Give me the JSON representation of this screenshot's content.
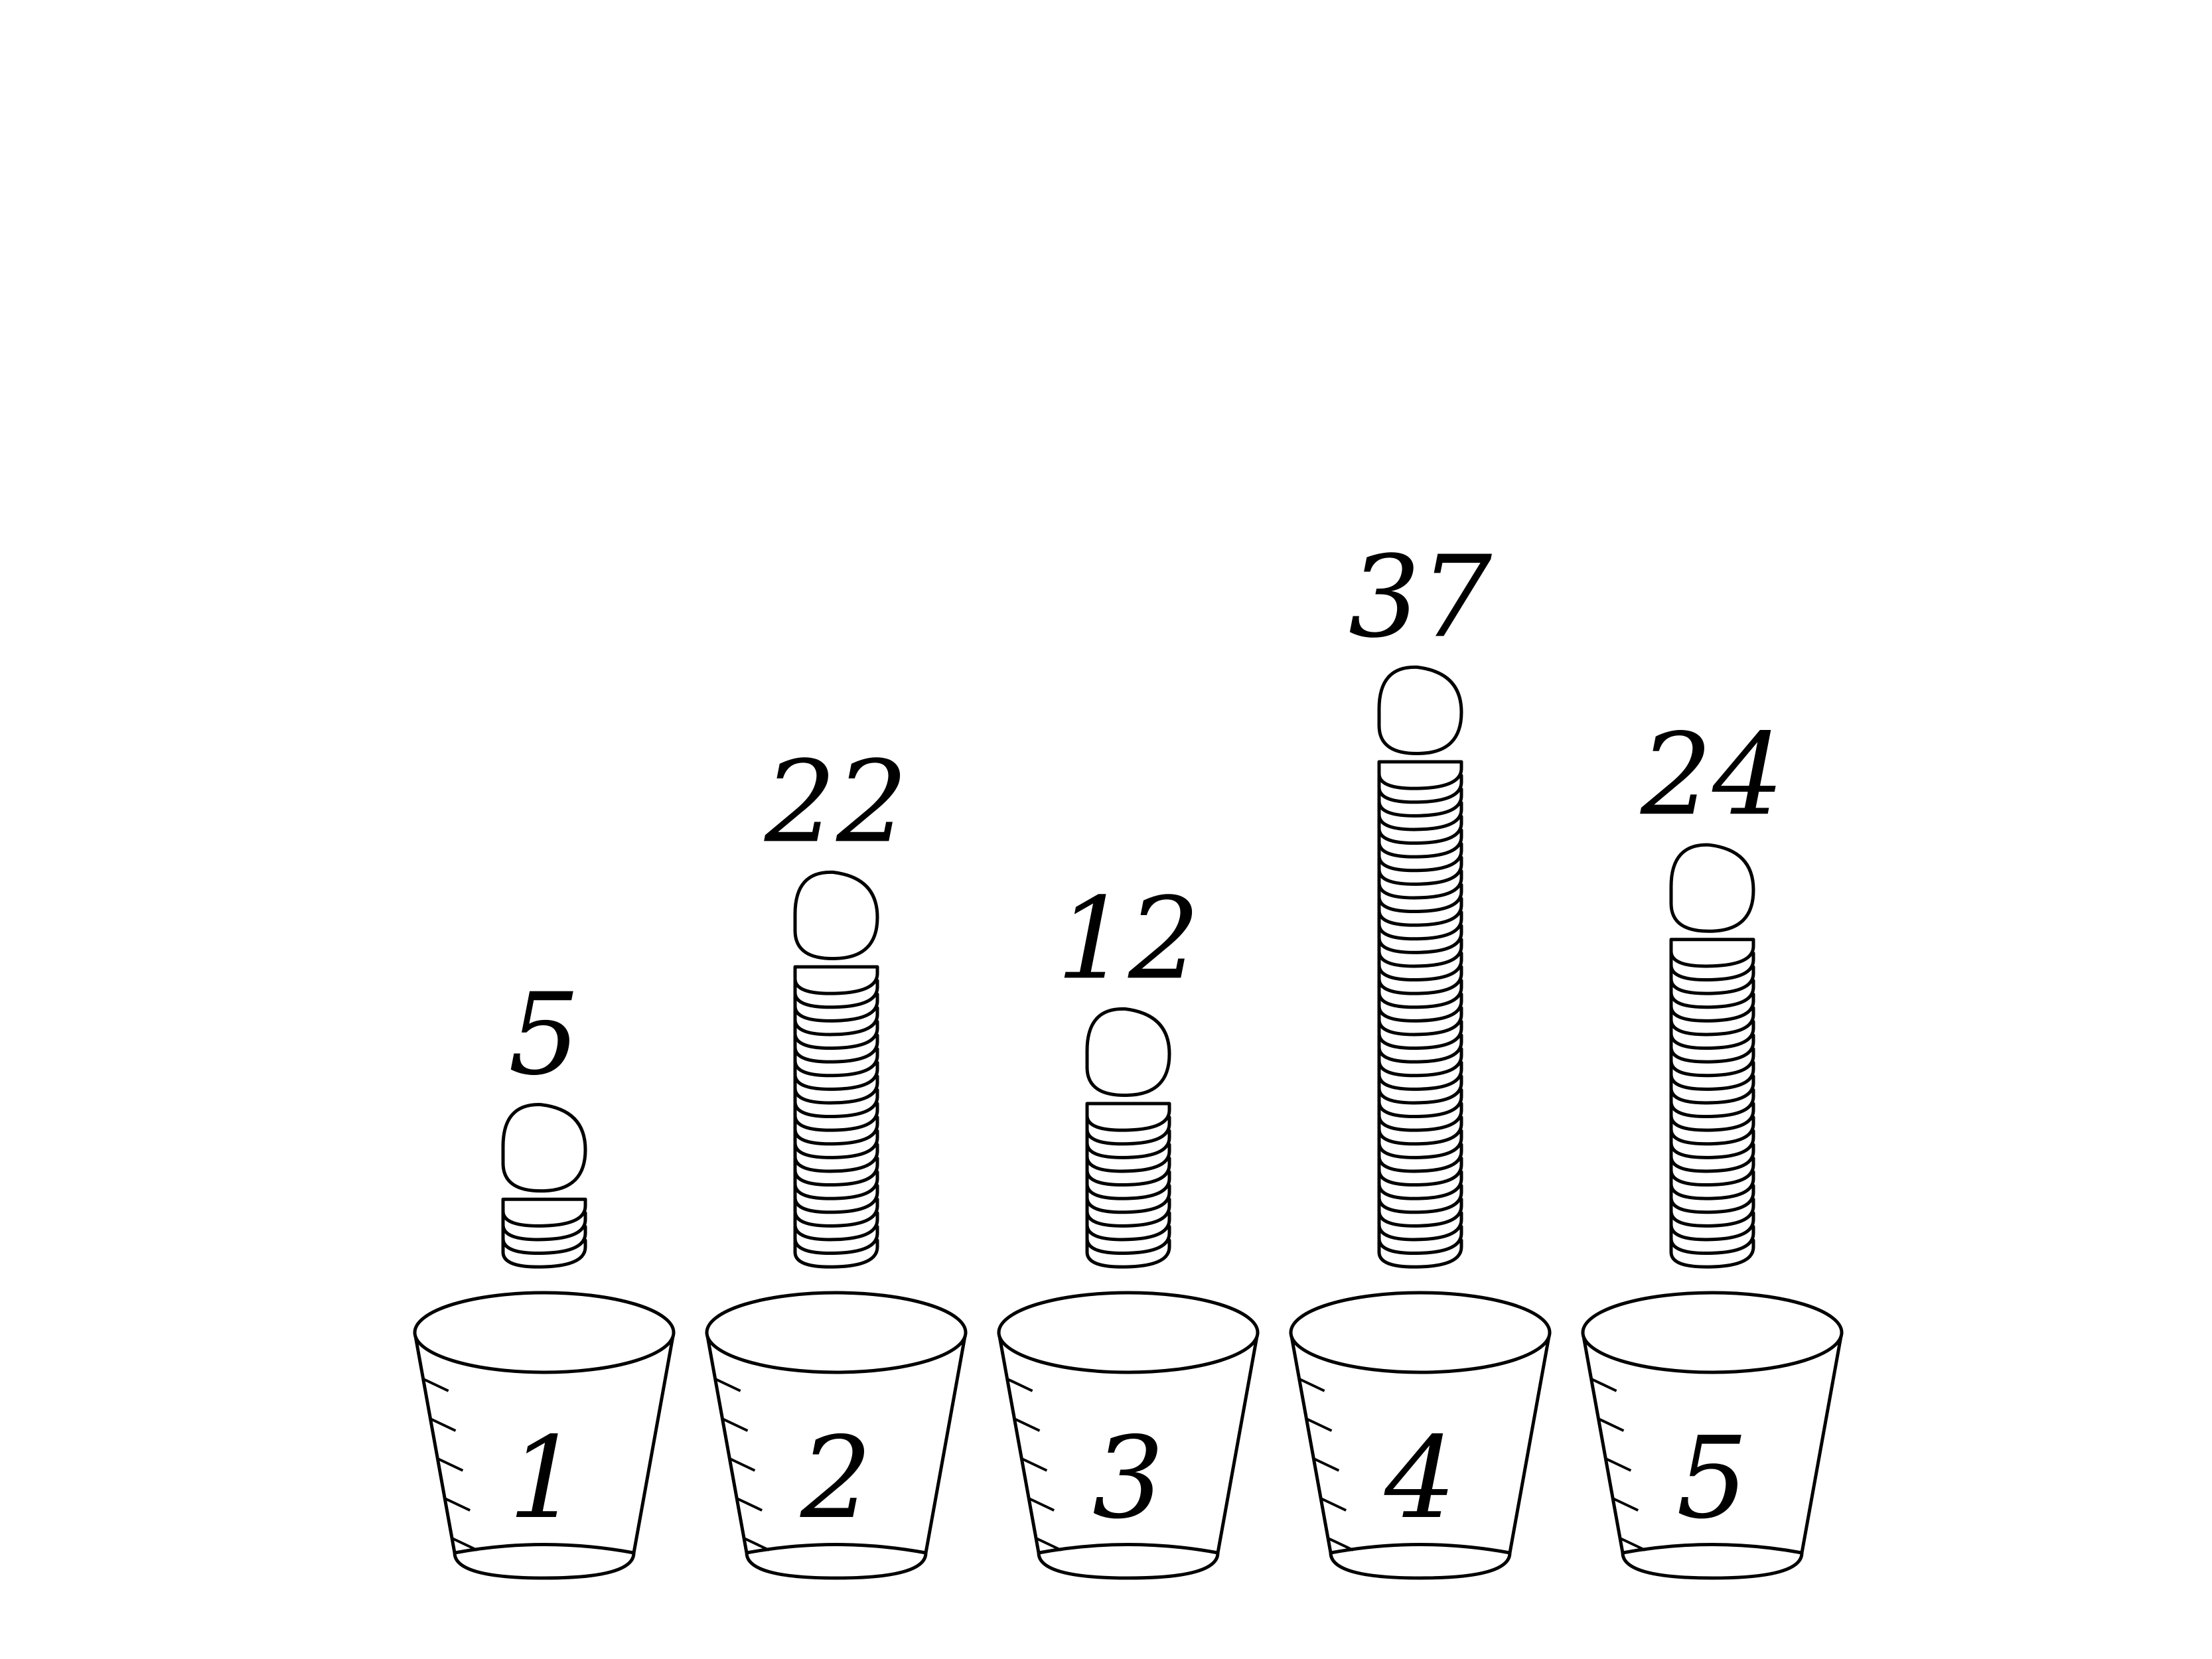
{
  "colors": {
    "line": "#000000",
    "fill": "#ffffff"
  },
  "cups": [
    {
      "label": "1",
      "coins": 5
    },
    {
      "label": "2",
      "coins": 22
    },
    {
      "label": "3",
      "coins": 12
    },
    {
      "label": "4",
      "coins": 37
    },
    {
      "label": "5",
      "coins": 24
    }
  ]
}
